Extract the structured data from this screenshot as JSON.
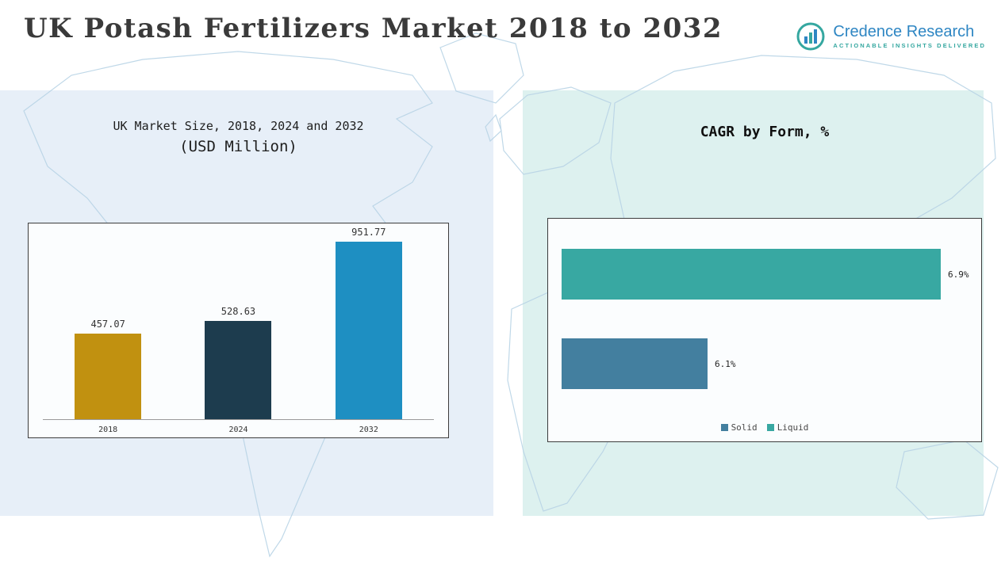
{
  "header": {
    "title": "UK Potash Fertilizers Market 2018 to 2032"
  },
  "logo": {
    "name": "Credence Research",
    "tagline": "Actionable Insights Delivered"
  },
  "chart_data": [
    {
      "type": "bar",
      "orientation": "vertical",
      "title": "UK Market Size, 2018, 2024 and 2032",
      "subtitle": "(USD Million)",
      "categories": [
        "2018",
        "2024",
        "2032"
      ],
      "values": [
        457.07,
        528.63,
        951.77
      ],
      "value_labels": [
        "457.07",
        "528.63",
        "951.77"
      ],
      "bar_colors": [
        "#c19110",
        "#1d3c4e",
        "#1e8fc2"
      ],
      "xlabel": "",
      "ylabel": "",
      "ylim": [
        0,
        1000
      ],
      "grid": false,
      "legend_position": "none"
    },
    {
      "type": "bar",
      "orientation": "horizontal",
      "title": "CAGR by Form, %",
      "categories": [
        "Liquid",
        "Solid"
      ],
      "values": [
        6.9,
        6.1
      ],
      "value_labels": [
        "6.9%",
        "6.1%"
      ],
      "bar_colors": [
        "#38a8a2",
        "#437f9f"
      ],
      "xlim": [
        5.6,
        7.0
      ],
      "grid": false,
      "legend_position": "bottom",
      "legend": [
        {
          "label": "Solid",
          "color": "#437f9f"
        },
        {
          "label": "Liquid",
          "color": "#38a8a2"
        }
      ]
    }
  ],
  "colors": {
    "left_panel": "#e7eff8",
    "right_panel": "#ddf1ef",
    "map_line": "#b9d4e6",
    "title_text": "#3a3a3a",
    "logo_blue": "#2e86c3",
    "logo_teal": "#35a7a0"
  }
}
